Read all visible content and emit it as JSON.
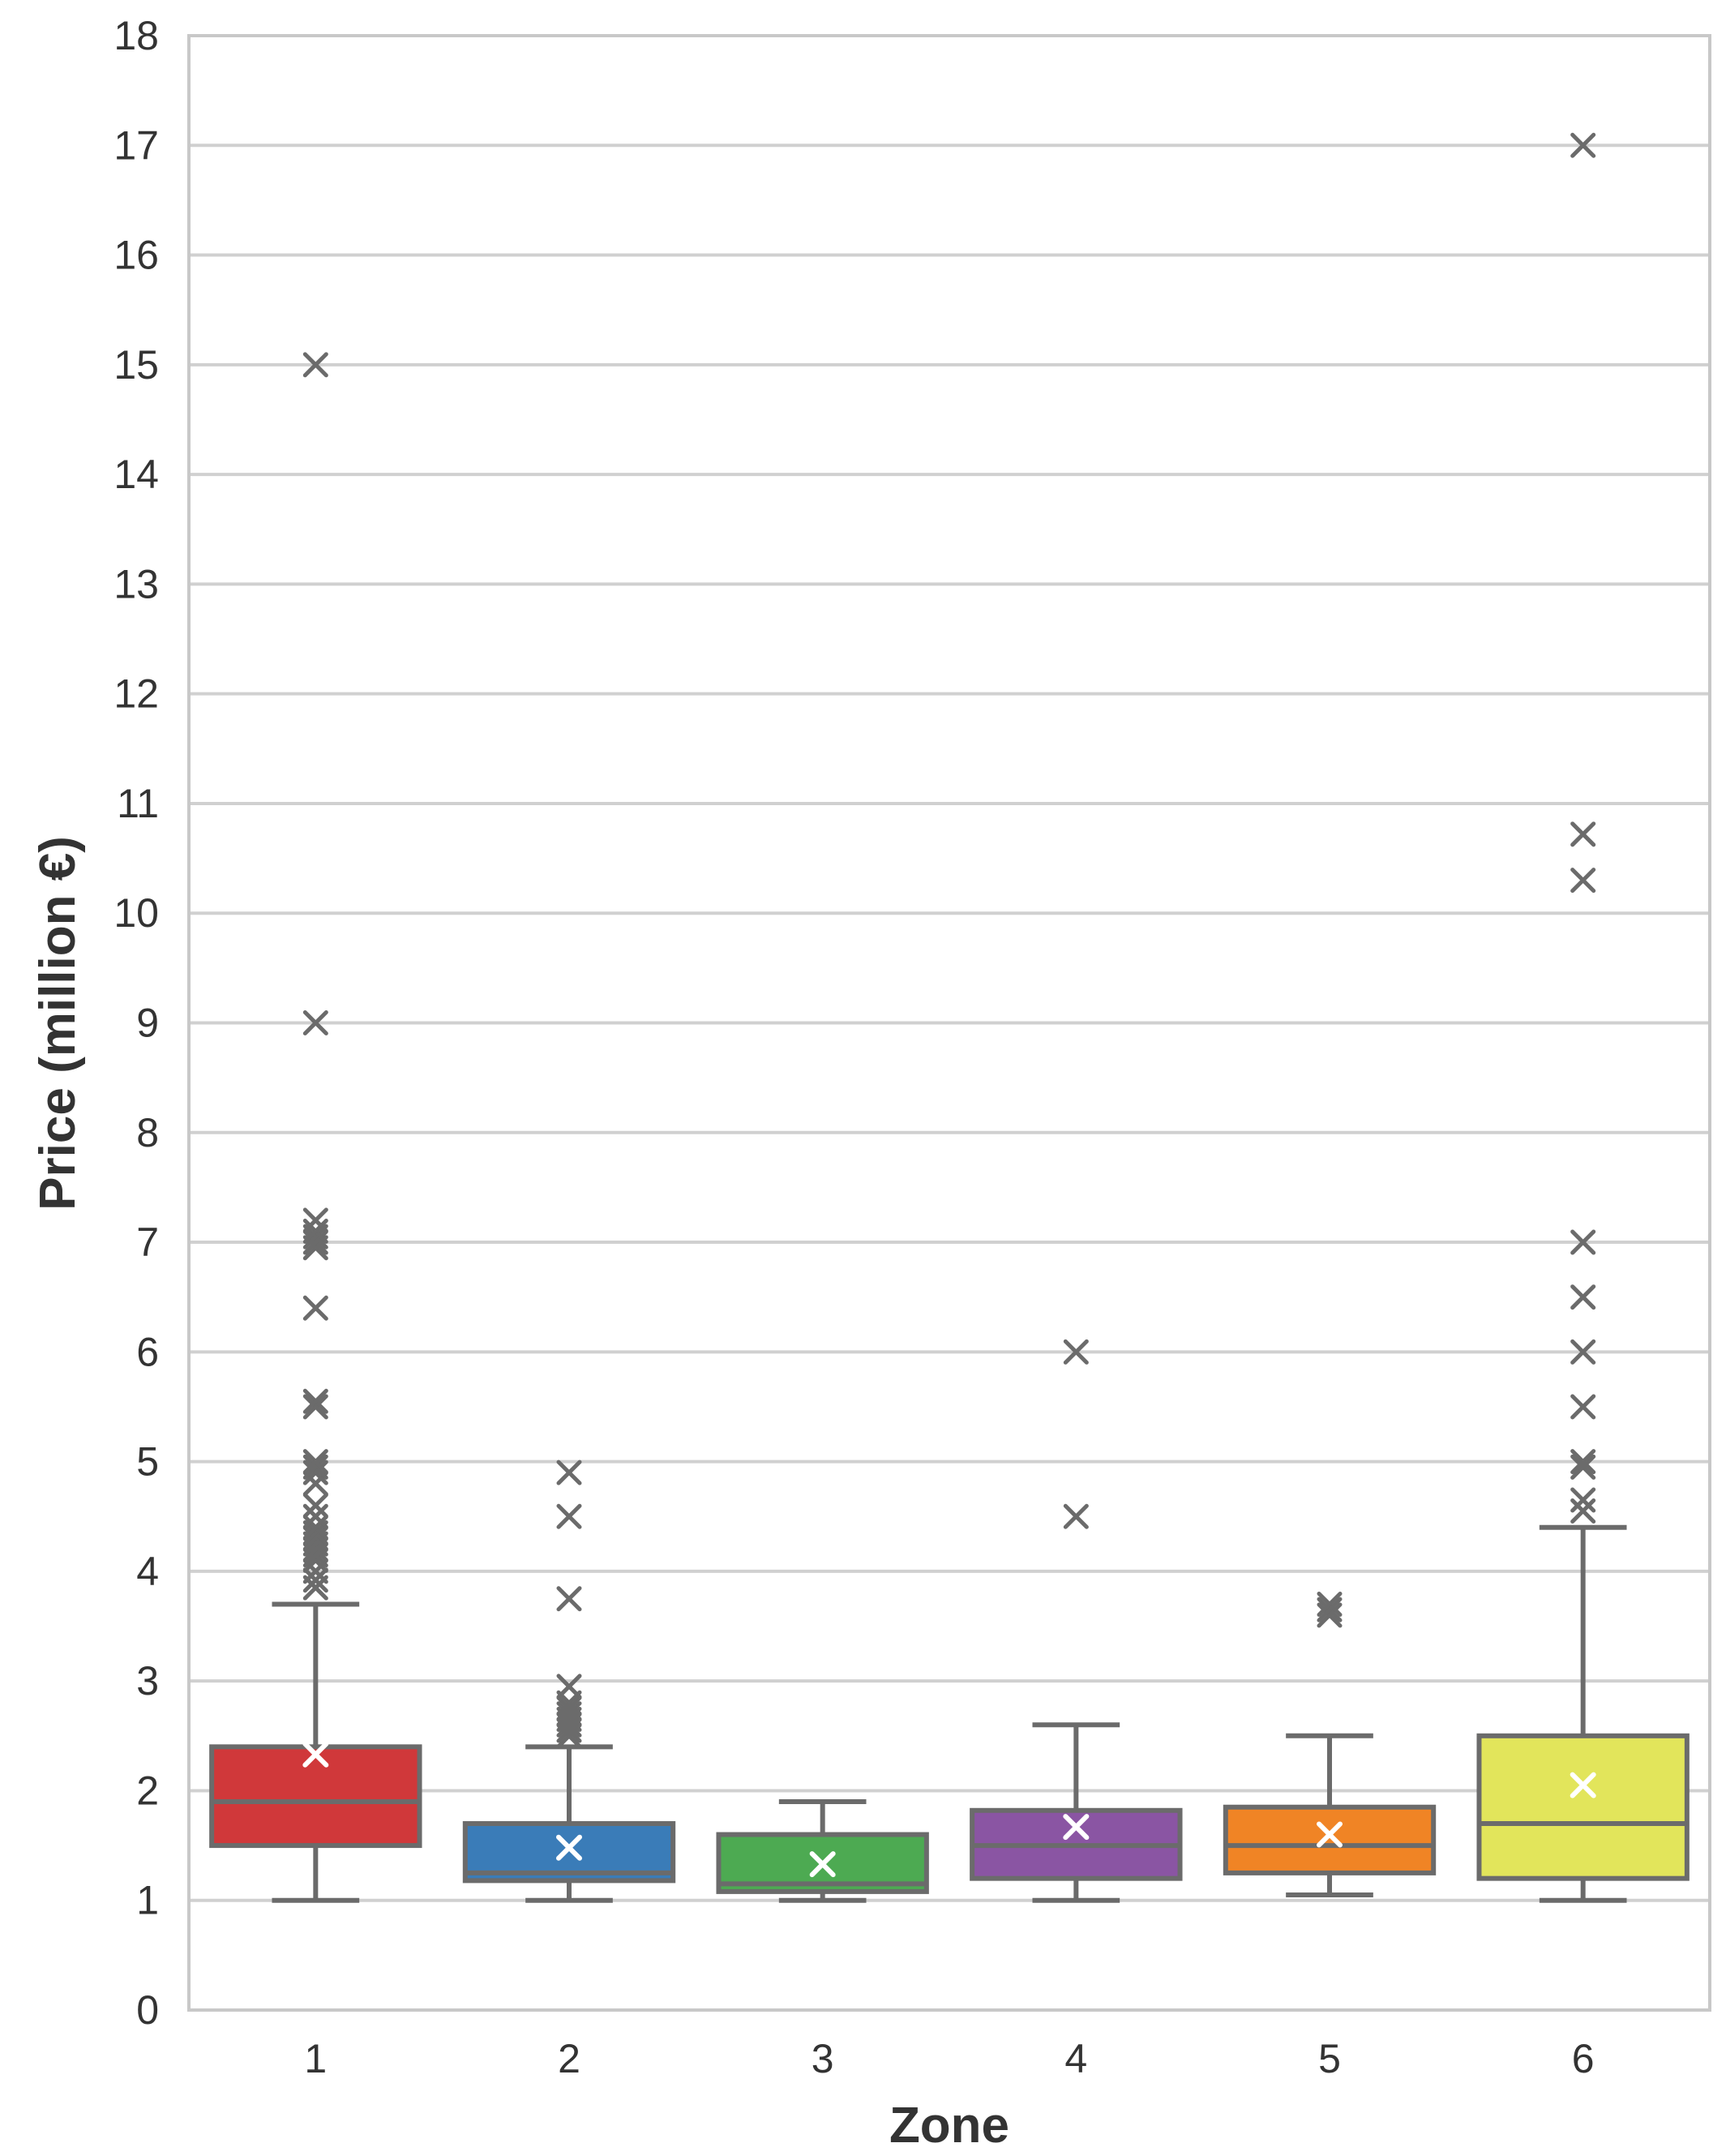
{
  "chart_data": {
    "type": "box",
    "title": "",
    "xlabel": "Zone",
    "ylabel": "Price (million €)",
    "ylim": [
      0,
      18
    ],
    "yticks": [
      0,
      1,
      2,
      3,
      4,
      5,
      6,
      7,
      8,
      9,
      10,
      11,
      12,
      13,
      14,
      15,
      16,
      17,
      18
    ],
    "grid": true,
    "categories": [
      "1",
      "2",
      "3",
      "4",
      "5",
      "6"
    ],
    "boxes": [
      {
        "zone": "1",
        "color": "#d0383a",
        "whisker_low": 1.0,
        "q1": 1.5,
        "median": 1.9,
        "q3": 2.4,
        "whisker_high": 3.7,
        "mean": 2.33,
        "outliers": [
          3.85,
          3.92,
          4.0,
          4.1,
          4.15,
          4.2,
          4.25,
          4.3,
          4.35,
          4.4,
          4.5,
          4.6,
          4.8,
          4.9,
          4.95,
          5.0,
          5.5,
          5.55,
          6.4,
          6.95,
          7.0,
          7.05,
          7.1,
          7.2,
          9.0,
          15.0
        ]
      },
      {
        "zone": "2",
        "color": "#3a7cb8",
        "whisker_low": 1.0,
        "q1": 1.18,
        "median": 1.25,
        "q3": 1.7,
        "whisker_high": 2.4,
        "mean": 1.48,
        "outliers": [
          2.5,
          2.55,
          2.6,
          2.65,
          2.7,
          2.75,
          2.8,
          2.95,
          3.75,
          4.5,
          4.9
        ]
      },
      {
        "zone": "3",
        "color": "#4daa52",
        "whisker_low": 1.0,
        "q1": 1.08,
        "median": 1.15,
        "q3": 1.6,
        "whisker_high": 1.9,
        "mean": 1.33,
        "outliers": []
      },
      {
        "zone": "4",
        "color": "#8a55a3",
        "whisker_low": 1.0,
        "q1": 1.2,
        "median": 1.5,
        "q3": 1.82,
        "whisker_high": 2.6,
        "mean": 1.67,
        "outliers": [
          4.5,
          6.0
        ]
      },
      {
        "zone": "5",
        "color": "#f08425",
        "whisker_low": 1.05,
        "q1": 1.25,
        "median": 1.5,
        "q3": 1.85,
        "whisker_high": 2.5,
        "mean": 1.6,
        "outliers": [
          3.6,
          3.65,
          3.7
        ]
      },
      {
        "zone": "6",
        "color": "#e2e55b",
        "whisker_low": 1.0,
        "q1": 1.2,
        "median": 1.7,
        "q3": 2.5,
        "whisker_high": 4.4,
        "mean": 2.05,
        "outliers": [
          4.55,
          4.65,
          4.95,
          5.0,
          5.5,
          6.0,
          6.5,
          7.0,
          10.3,
          10.72,
          17.0
        ]
      }
    ]
  }
}
